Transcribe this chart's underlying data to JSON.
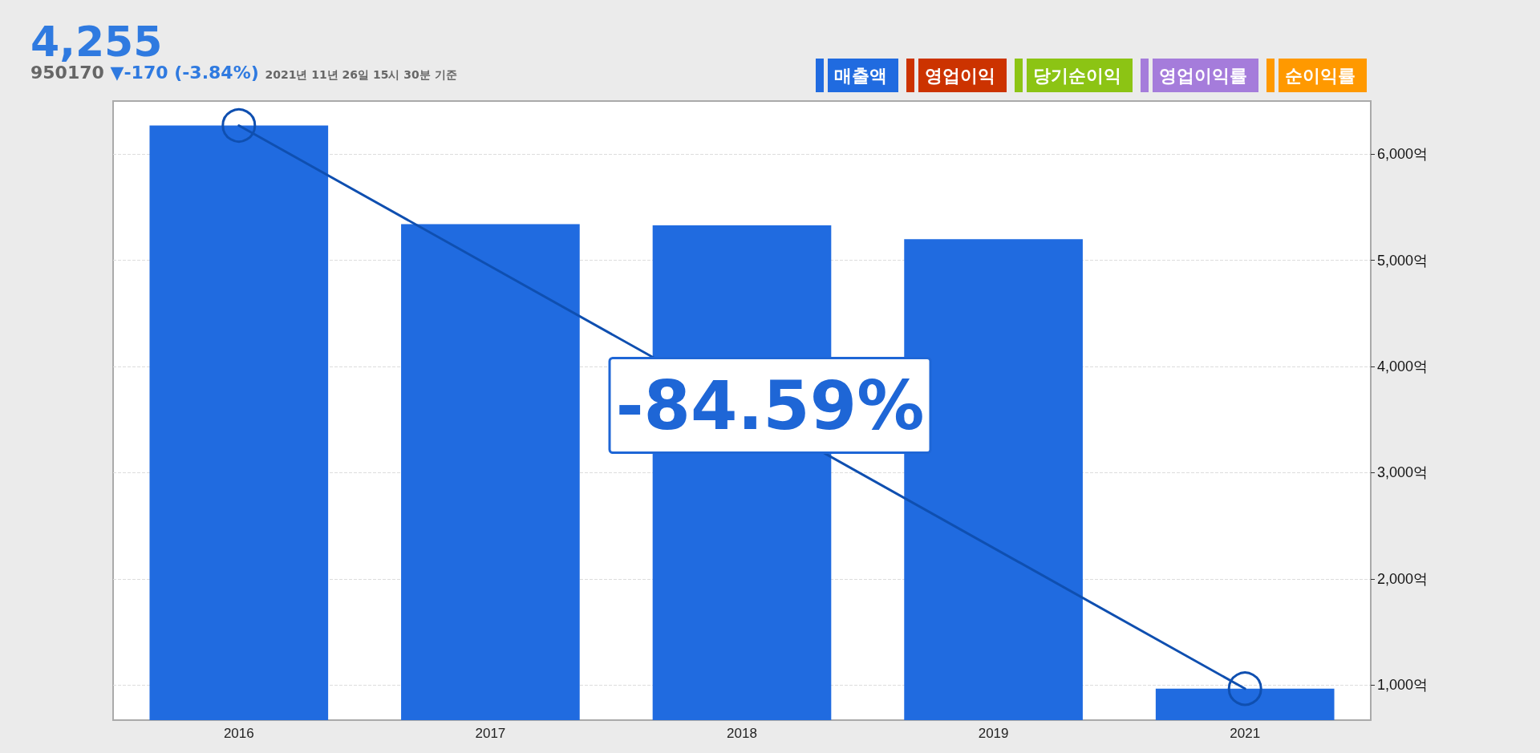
{
  "chart_data": {
    "type": "bar",
    "title": "4,255",
    "subtitle": "950170",
    "annotations": [
      "▼-170 (-3.84%)",
      "2021년 11년 26일 15시 30분 기준",
      "-84.59%"
    ],
    "categories": [
      "2016",
      "2017",
      "2018",
      "2019",
      "2021"
    ],
    "series": [
      {
        "name": "매출액",
        "color": "#206be0",
        "values": [
          6270,
          5340,
          5330,
          5200,
          966
        ]
      },
      {
        "name": "영업이익",
        "color": "#cc3300",
        "values": [
          null,
          null,
          null,
          null,
          null
        ]
      },
      {
        "name": "당기순이익",
        "color": "#8cc414",
        "values": [
          null,
          null,
          null,
          null,
          null
        ]
      },
      {
        "name": "영업이익률",
        "color": "#a57cdb",
        "values": [
          null,
          null,
          null,
          null,
          null
        ]
      },
      {
        "name": "순이익률",
        "color": "#ff9900",
        "values": [
          null,
          null,
          null,
          null,
          null
        ]
      },
      {
        "type": "line",
        "color": "#0f4fb0",
        "values": [
          6270,
          null,
          null,
          null,
          966
        ]
      }
    ],
    "ylim": [
      670,
      6500
    ],
    "yticks": [
      {
        "value": 1000,
        "label": "1,000억"
      },
      {
        "value": 2000,
        "label": "2,000억"
      },
      {
        "value": 3000,
        "label": "3,000억"
      },
      {
        "value": 4000,
        "label": "4,000억"
      },
      {
        "value": 5000,
        "label": "5,000억"
      },
      {
        "value": 6000,
        "label": "6,000억"
      }
    ],
    "grid": "y",
    "legend": "top right",
    "marker": "circle",
    "line_style": "solid"
  }
}
